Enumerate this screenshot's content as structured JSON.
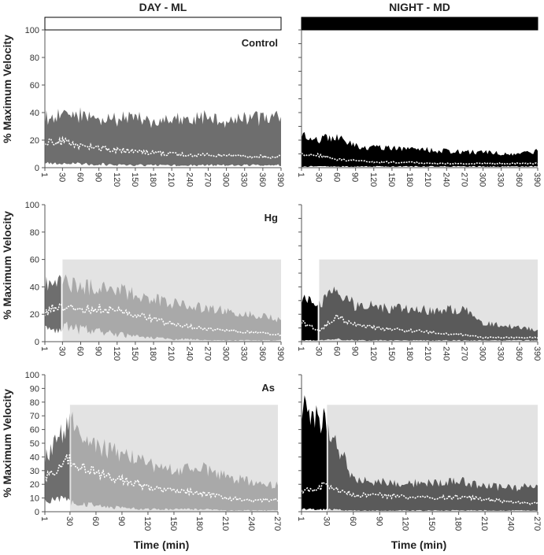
{
  "colors": {
    "day_band": "#6e6e6e",
    "night_band": "#000000",
    "day_treat_band": "#a9a9a9",
    "night_treat_band": "#5a5a5a",
    "treatment_shade": "#e3e3e3",
    "median_line": "#ffffff"
  },
  "headers": {
    "day": "DAY - ML",
    "night": "NIGHT - MD"
  },
  "light_bars": {
    "day": "open",
    "night": "filled"
  },
  "y_label": "% Maximum Velocity",
  "x_label": "Time (min)",
  "chart_data": [
    {
      "type": "area",
      "panel": "day-control",
      "row_label": "Control",
      "xlim": [
        1,
        390
      ],
      "ylim": [
        0,
        100
      ],
      "x_ticks": [
        "1",
        "30",
        "60",
        "90",
        "120",
        "150",
        "180",
        "210",
        "240",
        "270",
        "300",
        "330",
        "360",
        "390"
      ],
      "y_ticks": [
        "0",
        "20",
        "40",
        "60",
        "80",
        "100"
      ],
      "treatment_start": null,
      "treatment_y": null,
      "series": [
        {
          "role": "upper-range",
          "x": [
            1,
            30,
            60,
            90,
            120,
            150,
            180,
            210,
            240,
            270,
            300,
            330,
            360,
            390
          ],
          "values": [
            42,
            44,
            45,
            42,
            40,
            43,
            38,
            40,
            41,
            42,
            40,
            42,
            41,
            42
          ]
        },
        {
          "role": "lower-range",
          "x": [
            1,
            30,
            60,
            90,
            120,
            150,
            180,
            210,
            240,
            270,
            300,
            330,
            360,
            390
          ],
          "values": [
            4,
            3,
            3,
            3,
            2,
            2,
            2,
            2,
            2,
            2,
            2,
            2,
            2,
            2
          ]
        },
        {
          "role": "median",
          "x": [
            1,
            30,
            60,
            90,
            120,
            150,
            180,
            210,
            240,
            270,
            300,
            330,
            360,
            390
          ],
          "values": [
            18,
            19,
            16,
            14,
            13,
            12,
            11,
            10,
            9,
            9,
            9,
            8,
            8,
            8
          ]
        }
      ]
    },
    {
      "type": "area",
      "panel": "night-control",
      "row_label": "",
      "xlim": [
        1,
        390
      ],
      "ylim": [
        0,
        100
      ],
      "x_ticks": [
        "1",
        "30",
        "60",
        "90",
        "120",
        "150",
        "180",
        "210",
        "240",
        "270",
        "300",
        "330",
        "360",
        "390"
      ],
      "y_ticks": [],
      "treatment_start": null,
      "treatment_y": null,
      "series": [
        {
          "role": "upper-range",
          "x": [
            1,
            30,
            60,
            90,
            120,
            150,
            180,
            210,
            240,
            270,
            300,
            330,
            360,
            390
          ],
          "values": [
            30,
            24,
            26,
            18,
            17,
            17,
            16,
            15,
            14,
            13,
            13,
            12,
            12,
            14
          ]
        },
        {
          "role": "lower-range",
          "x": [
            1,
            30,
            60,
            90,
            120,
            150,
            180,
            210,
            240,
            270,
            300,
            330,
            360,
            390
          ],
          "values": [
            1,
            1,
            1,
            1,
            1,
            1,
            1,
            1,
            1,
            1,
            1,
            1,
            1,
            1
          ]
        },
        {
          "role": "median",
          "x": [
            1,
            30,
            60,
            90,
            120,
            150,
            180,
            210,
            240,
            270,
            300,
            330,
            360,
            390
          ],
          "values": [
            10,
            9,
            6,
            5,
            4,
            4,
            4,
            3,
            3,
            3,
            3,
            3,
            3,
            3
          ]
        }
      ]
    },
    {
      "type": "area",
      "panel": "day-hg",
      "row_label": "Hg",
      "xlim": [
        1,
        390
      ],
      "ylim": [
        0,
        100
      ],
      "x_ticks": [
        "1",
        "30",
        "60",
        "90",
        "120",
        "150",
        "180",
        "210",
        "240",
        "270",
        "300",
        "330",
        "360",
        "390"
      ],
      "y_ticks": [
        "0",
        "20",
        "40",
        "60",
        "80",
        "100"
      ],
      "treatment_start": 30,
      "treatment_y": 60,
      "series": [
        {
          "role": "upper-range",
          "x": [
            1,
            30,
            60,
            90,
            120,
            150,
            180,
            210,
            240,
            270,
            300,
            330,
            360,
            390
          ],
          "values": [
            48,
            50,
            48,
            45,
            44,
            40,
            36,
            32,
            30,
            28,
            26,
            24,
            22,
            18
          ]
        },
        {
          "role": "lower-range",
          "x": [
            1,
            30,
            60,
            90,
            120,
            150,
            180,
            210,
            240,
            270,
            300,
            330,
            360,
            390
          ],
          "values": [
            10,
            12,
            10,
            8,
            6,
            4,
            3,
            2,
            2,
            1,
            1,
            1,
            1,
            1
          ]
        },
        {
          "role": "median",
          "x": [
            1,
            30,
            60,
            90,
            120,
            150,
            180,
            210,
            240,
            270,
            300,
            330,
            360,
            390
          ],
          "values": [
            22,
            26,
            24,
            24,
            22,
            20,
            16,
            13,
            11,
            9,
            8,
            7,
            6,
            5
          ]
        }
      ]
    },
    {
      "type": "area",
      "panel": "night-hg",
      "row_label": "",
      "xlim": [
        1,
        390
      ],
      "ylim": [
        0,
        100
      ],
      "x_ticks": [
        "1",
        "30",
        "60",
        "90",
        "120",
        "150",
        "180",
        "210",
        "240",
        "270",
        "300",
        "330",
        "360",
        "390"
      ],
      "y_ticks": [],
      "treatment_start": 30,
      "treatment_y": 60,
      "series": [
        {
          "role": "upper-range",
          "x": [
            1,
            30,
            60,
            90,
            120,
            150,
            180,
            210,
            240,
            270,
            300,
            330,
            360,
            390
          ],
          "values": [
            38,
            32,
            44,
            30,
            30,
            28,
            28,
            27,
            27,
            27,
            16,
            14,
            12,
            10
          ]
        },
        {
          "role": "lower-range",
          "x": [
            1,
            30,
            60,
            90,
            120,
            150,
            180,
            210,
            240,
            270,
            300,
            330,
            360,
            390
          ],
          "values": [
            1,
            1,
            2,
            1,
            1,
            1,
            1,
            1,
            1,
            1,
            1,
            1,
            1,
            1
          ]
        },
        {
          "role": "median",
          "x": [
            1,
            30,
            60,
            90,
            120,
            150,
            180,
            210,
            240,
            270,
            300,
            330,
            360,
            390
          ],
          "values": [
            14,
            8,
            18,
            12,
            10,
            9,
            8,
            7,
            6,
            5,
            3,
            3,
            3,
            3
          ]
        }
      ]
    },
    {
      "type": "area",
      "panel": "day-as",
      "row_label": "As",
      "xlim": [
        1,
        270
      ],
      "ylim": [
        0,
        100
      ],
      "x_ticks": [
        "1",
        "30",
        "60",
        "90",
        "120",
        "150",
        "180",
        "210",
        "240",
        "270"
      ],
      "y_ticks": [
        "0",
        "10",
        "20",
        "30",
        "40",
        "50",
        "60",
        "70",
        "80",
        "90",
        "100"
      ],
      "treatment_start": 30,
      "treatment_y": 78,
      "series": [
        {
          "role": "upper-range",
          "x": [
            1,
            30,
            60,
            90,
            120,
            150,
            180,
            210,
            240,
            270
          ],
          "values": [
            45,
            75,
            55,
            50,
            40,
            35,
            38,
            30,
            25,
            22
          ]
        },
        {
          "role": "lower-range",
          "x": [
            1,
            30,
            60,
            90,
            120,
            150,
            180,
            210,
            240,
            270
          ],
          "values": [
            12,
            8,
            5,
            3,
            2,
            2,
            2,
            1,
            1,
            1
          ]
        },
        {
          "role": "median",
          "x": [
            1,
            30,
            60,
            90,
            120,
            150,
            180,
            210,
            240,
            270
          ],
          "values": [
            25,
            38,
            28,
            24,
            18,
            15,
            14,
            10,
            8,
            9
          ]
        }
      ]
    },
    {
      "type": "area",
      "panel": "night-as",
      "row_label": "",
      "xlim": [
        1,
        270
      ],
      "ylim": [
        0,
        100
      ],
      "x_ticks": [
        "1",
        "30",
        "60",
        "90",
        "120",
        "150",
        "180",
        "210",
        "240",
        "270"
      ],
      "y_ticks": [],
      "treatment_start": 30,
      "treatment_y": 78,
      "series": [
        {
          "role": "upper-range",
          "x": [
            1,
            30,
            60,
            90,
            120,
            150,
            180,
            210,
            240,
            270
          ],
          "values": [
            90,
            75,
            28,
            25,
            24,
            25,
            26,
            22,
            20,
            22
          ]
        },
        {
          "role": "lower-range",
          "x": [
            1,
            30,
            60,
            90,
            120,
            150,
            180,
            210,
            240,
            270
          ],
          "values": [
            2,
            2,
            1,
            1,
            1,
            1,
            1,
            1,
            1,
            1
          ]
        },
        {
          "role": "median",
          "x": [
            1,
            30,
            60,
            90,
            120,
            150,
            180,
            210,
            240,
            270
          ],
          "values": [
            14,
            20,
            12,
            12,
            11,
            10,
            11,
            9,
            7,
            6
          ]
        }
      ]
    }
  ]
}
